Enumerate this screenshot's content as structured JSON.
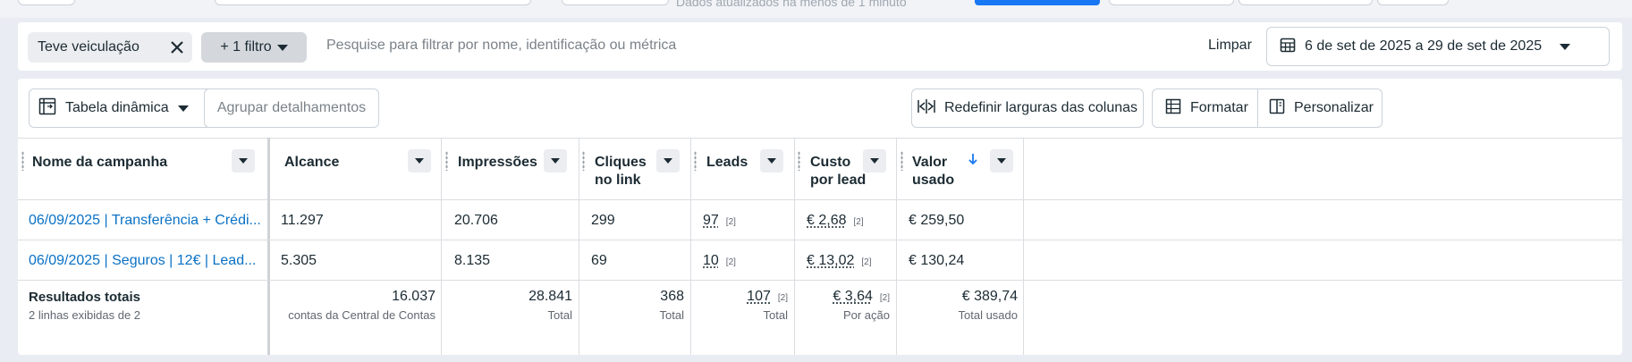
{
  "top_strip": {
    "partial_text": "Dados atualizados há menos de 1 minuto"
  },
  "filter_bar": {
    "chip_label": "Teve veiculação",
    "more_filters_label": "+ 1 filtro",
    "search_placeholder": "Pesquise para filtrar por nome, identificação ou métrica",
    "clear_label": "Limpar",
    "date_range": "6 de set de 2025 a 29 de set de 2025"
  },
  "toolbar": {
    "pivot_label": "Tabela dinâmica",
    "group_label": "Agrupar detalhamentos",
    "reset_widths_label": "Redefinir larguras das colunas",
    "format_label": "Formatar",
    "customize_label": "Personalizar"
  },
  "columns": [
    {
      "label": "Nome da campanha"
    },
    {
      "label": "Alcance"
    },
    {
      "label": "Impressões"
    },
    {
      "label": "Cliques",
      "label2": "no link"
    },
    {
      "label": "Leads"
    },
    {
      "label": "Custo",
      "label2": "por lead"
    },
    {
      "label": "Valor",
      "label2": "usado",
      "sorted": "desc"
    }
  ],
  "rows": [
    {
      "name": "06/09/2025 | Transferência + Crédi...",
      "reach": "11.297",
      "impressions": "20.706",
      "clicks": "299",
      "leads": "97",
      "leads_note": "[2]",
      "cpl": "€ 2,68",
      "cpl_note": "[2]",
      "spent": "€ 259,50"
    },
    {
      "name": "06/09/2025 | Seguros | 12€ | Lead...",
      "reach": "5.305",
      "impressions": "8.135",
      "clicks": "69",
      "leads": "10",
      "leads_note": "[2]",
      "cpl": "€ 13,02",
      "cpl_note": "[2]",
      "spent": "€ 130,24"
    }
  ],
  "totals": {
    "title": "Resultados totais",
    "subtitle": "2 linhas exibidas de 2",
    "reach": "16.037",
    "reach_sub": "contas da Central de Contas",
    "impressions": "28.841",
    "impressions_sub": "Total",
    "clicks": "368",
    "clicks_sub": "Total",
    "leads": "107",
    "leads_note": "[2]",
    "leads_sub": "Total",
    "cpl": "€ 3,64",
    "cpl_note": "[2]",
    "cpl_sub": "Por ação",
    "spent": "€ 389,74",
    "spent_sub": "Total usado"
  },
  "colors": {
    "link": "#0a71c5",
    "sort_arrow": "#1877f2",
    "background": "#e9edf3"
  }
}
